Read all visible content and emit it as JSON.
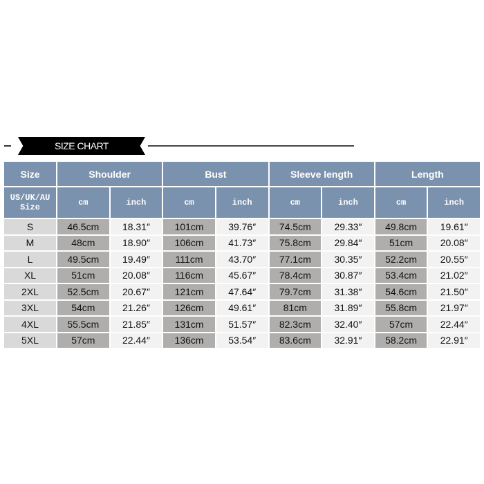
{
  "title": "SIZE CHART",
  "headers": [
    "Size",
    "Shoulder",
    "Bust",
    "Sleeve length",
    "Length"
  ],
  "size_subheader": "US/UK/AU Size",
  "unit_cm": "cm",
  "unit_inch": "inch",
  "colors": {
    "header": "#7b92ae",
    "size_cell": "#d9d9d9",
    "cm_cell": "#b0adad",
    "inch_cell": "#f2f2f2"
  },
  "rows": [
    [
      "S",
      "46.5cm",
      "18.31″",
      "101cm",
      "39.76″",
      "74.5cm",
      "29.33″",
      "49.8cm",
      "19.61″"
    ],
    [
      "M",
      "48cm",
      "18.90″",
      "106cm",
      "41.73″",
      "75.8cm",
      "29.84″",
      "51cm",
      "20.08″"
    ],
    [
      "L",
      "49.5cm",
      "19.49″",
      "111cm",
      "43.70″",
      "77.1cm",
      "30.35″",
      "52.2cm",
      "20.55″"
    ],
    [
      "XL",
      "51cm",
      "20.08″",
      "116cm",
      "45.67″",
      "78.4cm",
      "30.87″",
      "53.4cm",
      "21.02″"
    ],
    [
      "2XL",
      "52.5cm",
      "20.67″",
      "121cm",
      "47.64″",
      "79.7cm",
      "31.38″",
      "54.6cm",
      "21.50″"
    ],
    [
      "3XL",
      "54cm",
      "21.26″",
      "126cm",
      "49.61″",
      "81cm",
      "31.89″",
      "55.8cm",
      "21.97″"
    ],
    [
      "4XL",
      "55.5cm",
      "21.85″",
      "131cm",
      "51.57″",
      "82.3cm",
      "32.40″",
      "57cm",
      "22.44″"
    ],
    [
      "5XL",
      "57cm",
      "22.44″",
      "136cm",
      "53.54″",
      "83.6cm",
      "32.91″",
      "58.2cm",
      "22.91″"
    ]
  ]
}
